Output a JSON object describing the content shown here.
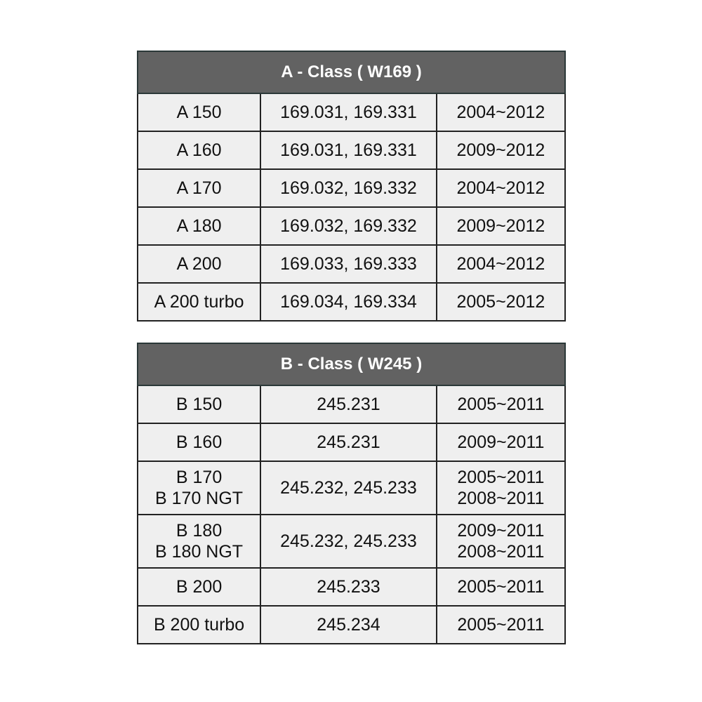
{
  "tables": [
    {
      "title": "A - Class ( W169 )",
      "rows": [
        [
          "A 150",
          "169.031, 169.331",
          "2004~2012"
        ],
        [
          "A 160",
          "169.031, 169.331",
          "2009~2012"
        ],
        [
          "A 170",
          "169.032, 169.332",
          "2004~2012"
        ],
        [
          "A 180",
          "169.032, 169.332",
          "2009~2012"
        ],
        [
          "A 200",
          "169.033, 169.333",
          "2004~2012"
        ],
        [
          "A 200 turbo",
          "169.034, 169.334",
          "2005~2012"
        ]
      ]
    },
    {
      "title": "B - Class ( W245 )",
      "rows": [
        [
          "B 150",
          "245.231",
          "2005~2011"
        ],
        [
          "B 160",
          "245.231",
          "2009~2011"
        ],
        [
          "B 170\nB 170 NGT",
          "245.232, 245.233",
          "2005~2011\n2008~2011"
        ],
        [
          "B 180\nB 180 NGT",
          "245.232, 245.233",
          "2009~2011\n2008~2011"
        ],
        [
          "B 200",
          "245.233",
          "2005~2011"
        ],
        [
          "B 200 turbo",
          "245.234",
          "2005~2011"
        ]
      ]
    }
  ],
  "colors": {
    "header_bg": "#626262",
    "cell_bg": "#efefef",
    "border": "#222222"
  }
}
